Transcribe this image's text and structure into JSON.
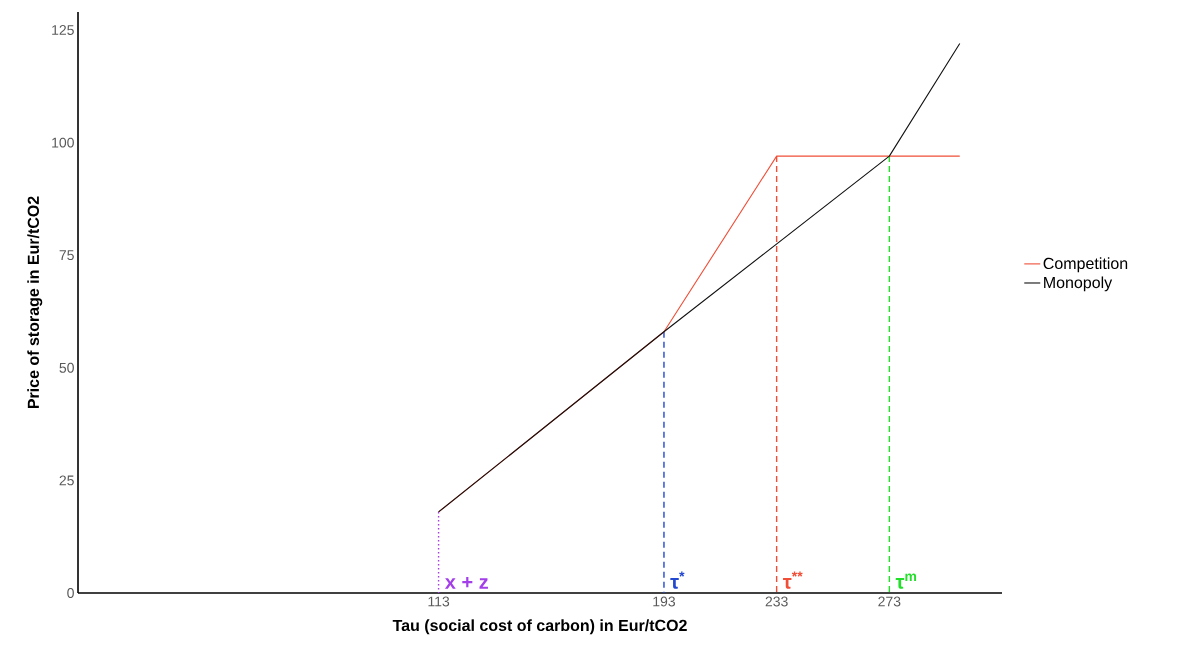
{
  "chart_data": {
    "type": "line",
    "xlabel": "Tau (social cost of carbon) in Eur/tCO2",
    "ylabel": "Price of storage in Eur/tCO2",
    "xlim": [
      -15,
      313
    ],
    "ylim": [
      0,
      129
    ],
    "xticks": [
      113,
      193,
      233,
      273
    ],
    "yticks": [
      0,
      25,
      50,
      75,
      100,
      125
    ],
    "grid": false,
    "legend": "right",
    "line_style": "solid",
    "marker": "none",
    "series": [
      {
        "name": "Competition",
        "color": "#f04e37",
        "x": [
          113,
          193,
          233,
          298
        ],
        "values": [
          18,
          58,
          97,
          97
        ]
      },
      {
        "name": "Monopoly",
        "color": "#111111",
        "x": [
          113,
          193,
          273,
          298
        ],
        "values": [
          18,
          58,
          97,
          122
        ]
      },
      {
        "color": "#a23fe8",
        "x": [
          113,
          113
        ],
        "values": [
          18,
          0
        ],
        "line_style": "dotted"
      },
      {
        "color": "#2348d0",
        "x": [
          193,
          193
        ],
        "values": [
          58,
          0
        ],
        "line_style": "dashed"
      },
      {
        "color": "#f04e37",
        "x": [
          233,
          233
        ],
        "values": [
          97,
          0
        ],
        "line_style": "dashed"
      },
      {
        "color": "#22e02a",
        "x": [
          273,
          273
        ],
        "values": [
          97,
          0
        ],
        "line_style": "dashed"
      }
    ],
    "annotations": [
      {
        "text": "x + z",
        "x": 113,
        "y": 0
      },
      {
        "text": "τ$^{*}$",
        "x": 193,
        "y": 0
      },
      {
        "text": "τ$^{**}$",
        "x": 233,
        "y": 0
      },
      {
        "text": "τ$^{m}$",
        "x": 273,
        "y": 0
      }
    ]
  }
}
